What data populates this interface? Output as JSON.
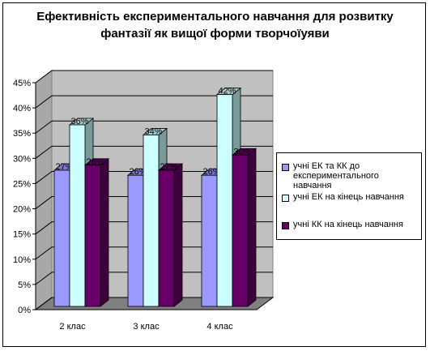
{
  "chart_data": {
    "type": "bar",
    "title": "Ефективність експериментального навчання для розвитку фантазії як вищої форми творчоїуяви",
    "categories": [
      "2 клас",
      "3 клас",
      "4 клас"
    ],
    "series": [
      {
        "name": "учні ЕК та КК до експериментального навчання",
        "values": [
          27,
          26,
          26
        ],
        "labels": [
          "27%",
          "26%",
          "26%"
        ],
        "color": "#9999ff"
      },
      {
        "name": "учні ЕК на кінець навчання",
        "values": [
          36,
          34,
          42
        ],
        "labels": [
          "36%",
          "34%",
          "42%"
        ],
        "color": "#ccffff"
      },
      {
        "name": "учні КК на кінець навчання",
        "values": [
          28,
          27,
          30
        ],
        "labels": [
          "28%",
          "27%",
          "30%"
        ],
        "color": "#660066"
      }
    ],
    "ylim": [
      0,
      45
    ],
    "yticks": [
      "0%",
      "5%",
      "10%",
      "15%",
      "20%",
      "25%",
      "30%",
      "35%",
      "40%",
      "45%"
    ],
    "grid": true,
    "legend": "right",
    "wall_color": "#c0c0c0",
    "floor_color": "#808080"
  }
}
